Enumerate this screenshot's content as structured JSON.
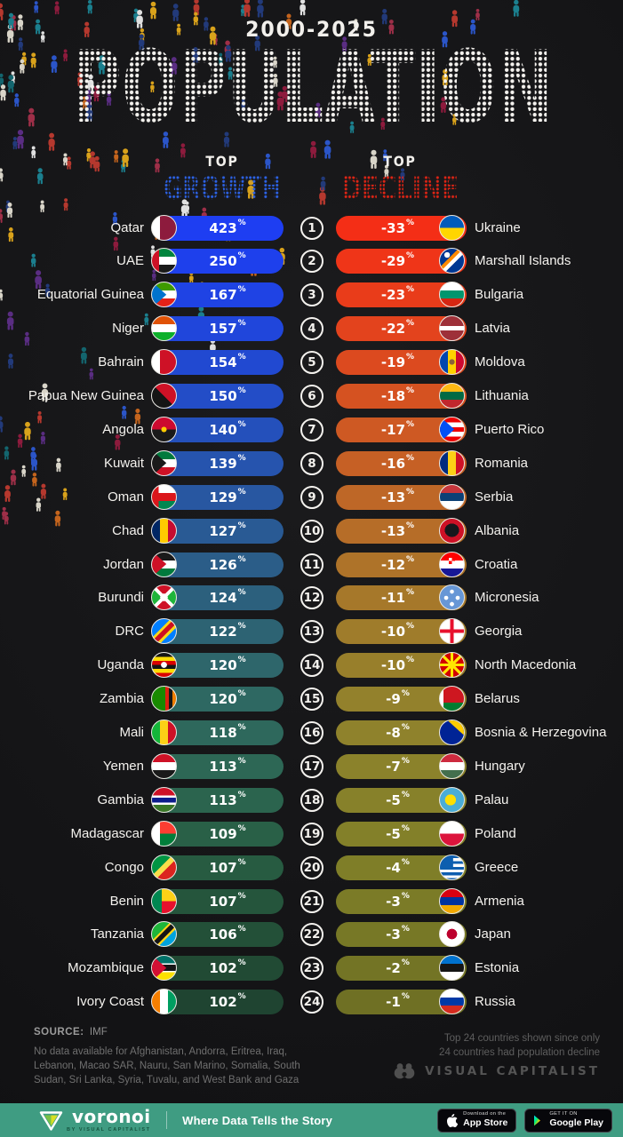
{
  "title": {
    "period": "2000-2025",
    "main": "POPULATION"
  },
  "columns": {
    "growth": {
      "top_label": "TOP",
      "label": "GROWTH",
      "unit": "%",
      "dot_color": "#2c62e6"
    },
    "decline": {
      "top_label": "TOP",
      "label": "DECLINE",
      "unit": "%",
      "dot_color": "#df2414"
    }
  },
  "chart_data": {
    "type": "bar",
    "title": "POPULATION",
    "subtitle": "2000-2025",
    "series_names": [
      "Top Growth",
      "Top Decline"
    ],
    "unit": "%",
    "rows": [
      {
        "rank": 1,
        "growth": {
          "country": "Qatar",
          "value": 423,
          "flag": "qatar",
          "color": "#1E3EF2"
        },
        "decline": {
          "country": "Ukraine",
          "value": -33,
          "flag": "ukraine",
          "color": "#F42E16"
        }
      },
      {
        "rank": 2,
        "growth": {
          "country": "UAE",
          "value": 250,
          "flag": "uae",
          "color": "#1E40EC"
        },
        "decline": {
          "country": "Marshall Islands",
          "value": -29,
          "flag": "marshall-islands",
          "color": "#EF3518"
        }
      },
      {
        "rank": 3,
        "growth": {
          "country": "Equatorial Guinea",
          "value": 167,
          "flag": "equatorial-guinea",
          "color": "#1F43E4"
        },
        "decline": {
          "country": "Bulgaria",
          "value": -23,
          "flag": "bulgaria",
          "color": "#E93C1A"
        }
      },
      {
        "rank": 4,
        "growth": {
          "country": "Niger",
          "value": 157,
          "flag": "niger",
          "color": "#2046DB"
        },
        "decline": {
          "country": "Latvia",
          "value": -22,
          "flag": "latvia",
          "color": "#E3431D"
        }
      },
      {
        "rank": 5,
        "growth": {
          "country": "Bahrain",
          "value": 154,
          "flag": "bahrain",
          "color": "#2149D1"
        },
        "decline": {
          "country": "Moldova",
          "value": -19,
          "flag": "moldova",
          "color": "#DC4A1F"
        }
      },
      {
        "rank": 6,
        "growth": {
          "country": "Papua New Guinea",
          "value": 150,
          "flag": "papua-new-guinea",
          "color": "#234DC7"
        },
        "decline": {
          "country": "Lithuania",
          "value": -18,
          "flag": "lithuania",
          "color": "#D55221"
        }
      },
      {
        "rank": 7,
        "growth": {
          "country": "Angola",
          "value": 140,
          "flag": "angola",
          "color": "#2450BB"
        },
        "decline": {
          "country": "Puerto Rico",
          "value": -17,
          "flag": "puerto-rico",
          "color": "#CE5923"
        }
      },
      {
        "rank": 8,
        "growth": {
          "country": "Kuwait",
          "value": 139,
          "flag": "kuwait",
          "color": "#2654AE"
        },
        "decline": {
          "country": "Romania",
          "value": -16,
          "flag": "romania",
          "color": "#C66025"
        }
      },
      {
        "rank": 9,
        "growth": {
          "country": "Oman",
          "value": 129,
          "flag": "oman",
          "color": "#2857A1"
        },
        "decline": {
          "country": "Serbia",
          "value": -13,
          "flag": "serbia",
          "color": "#BE6727"
        }
      },
      {
        "rank": 10,
        "growth": {
          "country": "Chad",
          "value": 127,
          "flag": "chad",
          "color": "#295A94"
        },
        "decline": {
          "country": "Albania",
          "value": -13,
          "flag": "albania",
          "color": "#B66D28"
        }
      },
      {
        "rank": 11,
        "growth": {
          "country": "Jordan",
          "value": 126,
          "flag": "jordan",
          "color": "#2B5D88"
        },
        "decline": {
          "country": "Croatia",
          "value": -12,
          "flag": "croatia",
          "color": "#AE7329"
        }
      },
      {
        "rank": 12,
        "growth": {
          "country": "Burundi",
          "value": 124,
          "flag": "burundi",
          "color": "#2C607D"
        },
        "decline": {
          "country": "Micronesia",
          "value": -11,
          "flag": "micronesia",
          "color": "#A6782A"
        }
      },
      {
        "rank": 13,
        "growth": {
          "country": "DRC",
          "value": 122,
          "flag": "drc",
          "color": "#2D6373"
        },
        "decline": {
          "country": "Georgia",
          "value": -10,
          "flag": "georgia",
          "color": "#9F7C2B"
        }
      },
      {
        "rank": 14,
        "growth": {
          "country": "Uganda",
          "value": 120,
          "flag": "uganda",
          "color": "#2E666B"
        },
        "decline": {
          "country": "North Macedonia",
          "value": -10,
          "flag": "north-macedonia",
          "color": "#987F2B"
        }
      },
      {
        "rank": 15,
        "growth": {
          "country": "Zambia",
          "value": 120,
          "flag": "zambia",
          "color": "#2E6862"
        },
        "decline": {
          "country": "Belarus",
          "value": -9,
          "flag": "belarus",
          "color": "#93812C"
        }
      },
      {
        "rank": 16,
        "growth": {
          "country": "Mali",
          "value": 118,
          "flag": "mali",
          "color": "#2E685C"
        },
        "decline": {
          "country": "Bosnia & Herzegovina",
          "value": -8,
          "flag": "bosnia-herzegovina",
          "color": "#8F822C"
        }
      },
      {
        "rank": 17,
        "growth": {
          "country": "Yemen",
          "value": 113,
          "flag": "yemen",
          "color": "#2D6755"
        },
        "decline": {
          "country": "Hungary",
          "value": -7,
          "flag": "hungary",
          "color": "#8B822B"
        }
      },
      {
        "rank": 18,
        "growth": {
          "country": "Gambia",
          "value": 113,
          "flag": "gambia",
          "color": "#2B644E"
        },
        "decline": {
          "country": "Palau",
          "value": -5,
          "flag": "palau",
          "color": "#87812A"
        }
      },
      {
        "rank": 19,
        "growth": {
          "country": "Madagascar",
          "value": 109,
          "flag": "madagascar",
          "color": "#296047"
        },
        "decline": {
          "country": "Poland",
          "value": -5,
          "flag": "poland",
          "color": "#838029"
        }
      },
      {
        "rank": 20,
        "growth": {
          "country": "Congo",
          "value": 107,
          "flag": "congo",
          "color": "#275B41"
        },
        "decline": {
          "country": "Greece",
          "value": -4,
          "flag": "greece",
          "color": "#7F7E28"
        }
      },
      {
        "rank": 21,
        "growth": {
          "country": "Benin",
          "value": 107,
          "flag": "benin",
          "color": "#25553C"
        },
        "decline": {
          "country": "Armenia",
          "value": -3,
          "flag": "armenia",
          "color": "#7B7B27"
        }
      },
      {
        "rank": 22,
        "growth": {
          "country": "Tanzania",
          "value": 106,
          "flag": "tanzania",
          "color": "#235038"
        },
        "decline": {
          "country": "Japan",
          "value": -3,
          "flag": "japan",
          "color": "#777826"
        }
      },
      {
        "rank": 23,
        "growth": {
          "country": "Mozambique",
          "value": 102,
          "flag": "mozambique",
          "color": "#214A34"
        },
        "decline": {
          "country": "Estonia",
          "value": -2,
          "flag": "estonia",
          "color": "#737425"
        }
      },
      {
        "rank": 24,
        "growth": {
          "country": "Ivory Coast",
          "value": 102,
          "flag": "ivory-coast",
          "color": "#1F4431"
        },
        "decline": {
          "country": "Russia",
          "value": -1,
          "flag": "russia",
          "color": "#6F7024"
        }
      }
    ]
  },
  "footer": {
    "source_label": "SOURCE:",
    "source_value": "IMF",
    "note": "No data available for Afghanistan, Andorra, Eritrea, Iraq, Lebanon, Macao SAR, Nauru, San Marino, Somalia, South Sudan, Sri Lanka, Syria, Tuvalu, and West Bank and Gaza",
    "right_note_line1": "Top 24 countries shown since only",
    "right_note_line2": "24 countries had population decline",
    "brand": "VISUAL CAPITALIST"
  },
  "bottom_bar": {
    "bar_color": "#3f9c82",
    "logo_text": "voronoi",
    "logo_sub": "BY VISUAL CAPITALIST",
    "tagline": "Where Data Tells the Story",
    "appstore_line1": "Download on the",
    "appstore_line2": "App Store",
    "gplay_line1": "GET IT ON",
    "gplay_line2": "Google Play"
  },
  "crowd_palette": [
    "#b5382e",
    "#8d1b3d",
    "#1b7f8e",
    "#223a7a",
    "#2b55c8",
    "#d9a21b",
    "#d8d4c8",
    "#c4641d",
    "#5a2d82",
    "#13656e",
    "#9e2f48",
    "#e0e0e0"
  ]
}
